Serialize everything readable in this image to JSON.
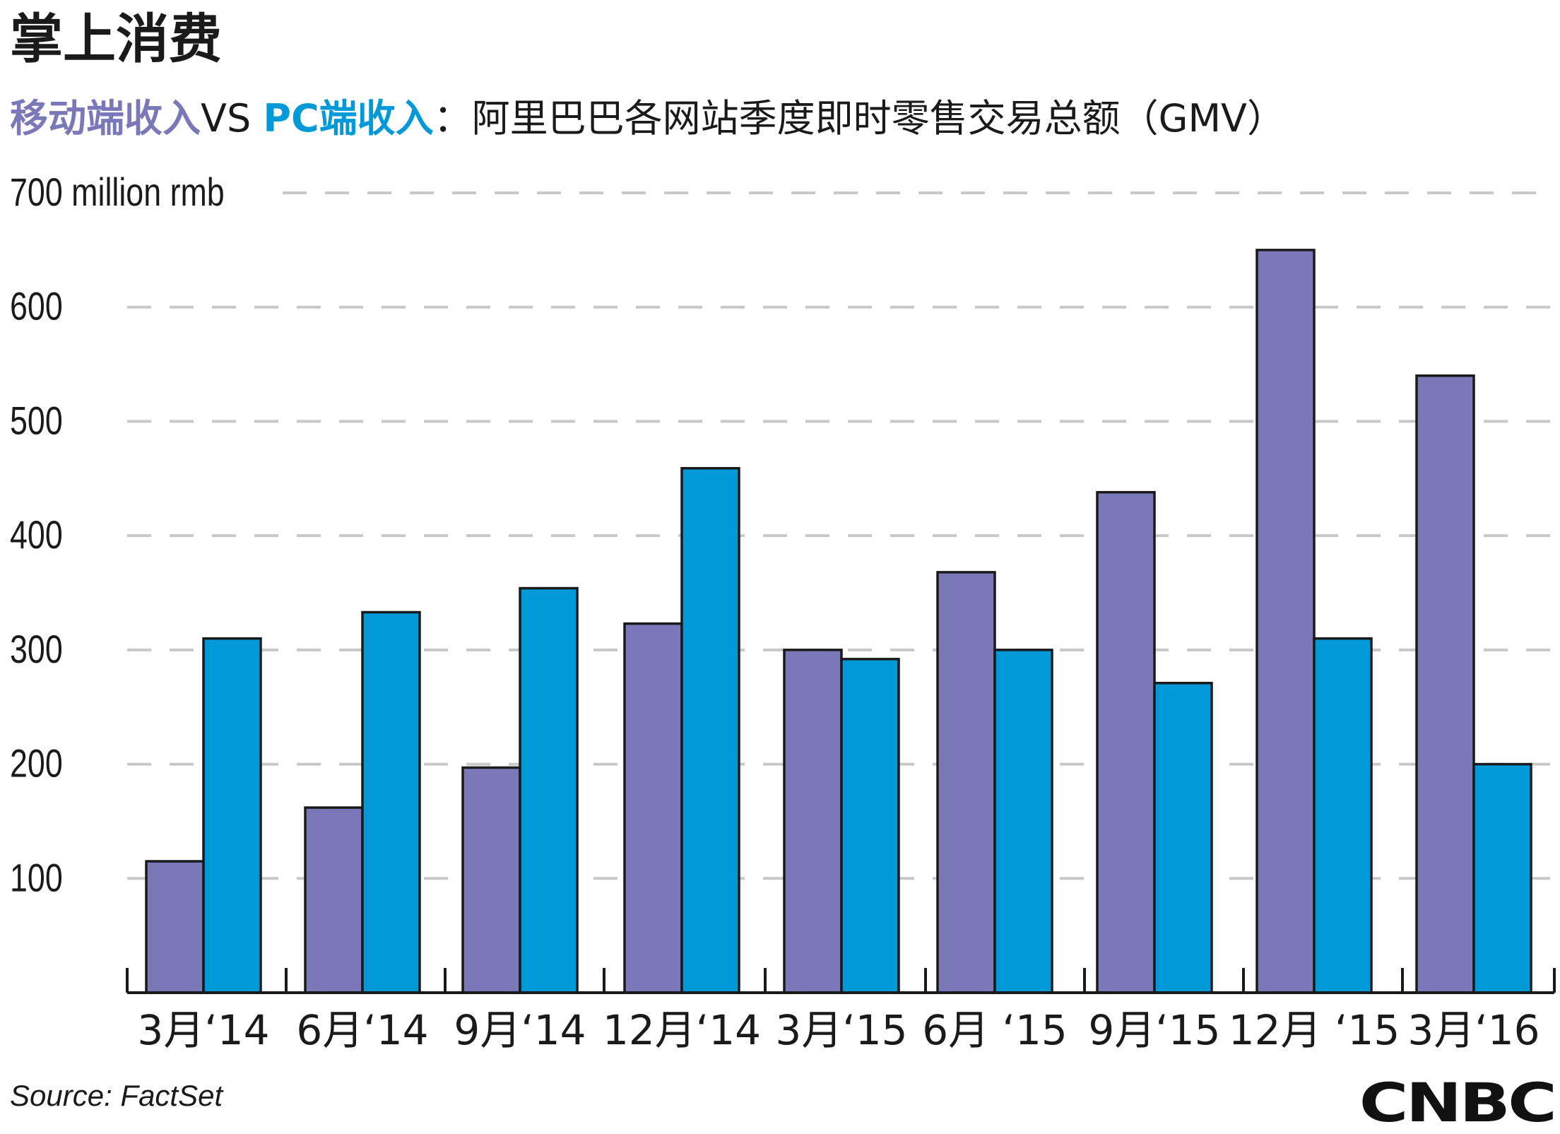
{
  "header": {
    "title": "掌上消费",
    "mobile_label": "移动端收入",
    "vs_label": "VS ",
    "pc_label": "PC端收入",
    "rest": "：阿里巴巴各网站季度即时零售交易总额（GMV）"
  },
  "footer": {
    "source": "Source: FactSet",
    "logo": "CNBC"
  },
  "chart_data": {
    "type": "bar",
    "title": "掌上消费",
    "subtitle": "移动端收入VS PC端收入：阿里巴巴各网站季度即时零售交易总额（GMV）",
    "ylabel": "700 million rmb",
    "ylim": [
      0,
      700
    ],
    "yticks": [
      100,
      200,
      300,
      400,
      500,
      600,
      700
    ],
    "ytick_labels": [
      "100",
      "200",
      "300",
      "400",
      "500",
      "600",
      "700 million rmb"
    ],
    "grid": true,
    "categories": [
      "3月‘14",
      "6月‘14",
      "9月‘14",
      "12月‘14",
      "3月‘15",
      "6月 ‘15",
      "9月‘15",
      "12月 ‘15",
      "3月‘16"
    ],
    "series": [
      {
        "name": "移动端收入",
        "color": "#7a78b8",
        "values": [
          115,
          162,
          197,
          323,
          300,
          368,
          438,
          650,
          540
        ]
      },
      {
        "name": "PC端收入",
        "color": "#0199d8",
        "values": [
          310,
          333,
          354,
          459,
          292,
          300,
          271,
          310,
          200
        ]
      }
    ]
  }
}
